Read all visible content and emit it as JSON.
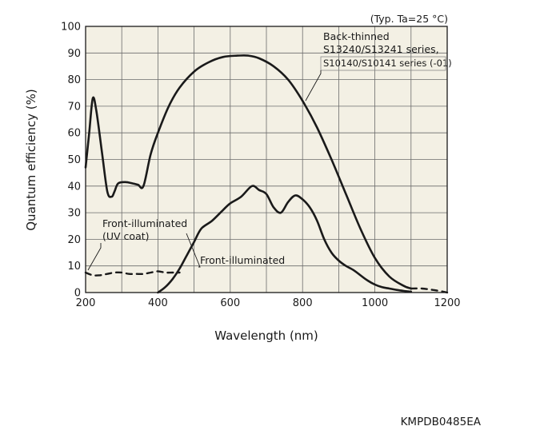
{
  "chart_data": {
    "type": "line",
    "note": "(Typ. Ta=25 °C)",
    "xlabel": "Wavelength (nm)",
    "ylabel": "Quantum efficiency (%)",
    "xlim": [
      200,
      1200
    ],
    "ylim": [
      0,
      100
    ],
    "xticks": [
      200,
      400,
      600,
      800,
      1000,
      1200
    ],
    "yticks": [
      0,
      10,
      20,
      30,
      40,
      50,
      60,
      70,
      80,
      90,
      100
    ],
    "grid": true,
    "plot_background": "#f3f0e4",
    "line_color": "#1a1a1a",
    "series": [
      {
        "name": "Back-thinned S13240/S13241 series, S10140/S10141 series (-01)",
        "x": [
          200,
          210,
          220,
          230,
          245,
          260,
          272,
          280,
          290,
          310,
          330,
          345,
          360,
          380,
          400,
          430,
          460,
          500,
          540,
          580,
          620,
          650,
          680,
          720,
          760,
          800,
          840,
          880,
          920,
          960,
          1000,
          1040,
          1080,
          1100
        ],
        "y": [
          47,
          60,
          73,
          68,
          53,
          38,
          36,
          38,
          41,
          41.5,
          41,
          40.5,
          40,
          52,
          60,
          70,
          77,
          83,
          86.5,
          88.5,
          89,
          89,
          88,
          85,
          80,
          72,
          62,
          50,
          37,
          24,
          13,
          6,
          2.5,
          1.5
        ],
        "style": "solid"
      },
      {
        "name": "Front-illuminated",
        "x": [
          400,
          420,
          440,
          460,
          480,
          500,
          520,
          550,
          580,
          600,
          630,
          660,
          680,
          700,
          720,
          740,
          760,
          780,
          800,
          820,
          840,
          860,
          880,
          900,
          920,
          940,
          960,
          980,
          1000,
          1020,
          1040,
          1060,
          1080,
          1100
        ],
        "y": [
          0,
          2,
          5,
          9,
          14,
          19,
          24,
          27,
          31,
          33.5,
          36,
          40,
          38.5,
          37,
          32,
          30,
          34,
          36.5,
          35,
          32,
          27,
          20,
          15,
          12,
          10,
          8.5,
          6.5,
          4.5,
          3,
          2,
          1.5,
          1,
          0.6,
          0.3
        ],
        "style": "solid"
      },
      {
        "name": "Front-illuminated (UV coat)",
        "x": [
          200,
          220,
          240,
          260,
          280,
          300,
          320,
          340,
          360,
          380,
          400,
          420,
          440,
          460
        ],
        "y": [
          7.5,
          6.5,
          6.5,
          7,
          7.5,
          7.5,
          7,
          7,
          7,
          7.5,
          8,
          7.5,
          7.5,
          7.5
        ],
        "style": "dashed"
      },
      {
        "name": "",
        "x": [
          1100,
          1130,
          1160,
          1190,
          1200
        ],
        "y": [
          1.5,
          1.5,
          1,
          0.3,
          0
        ],
        "style": "dashed"
      }
    ],
    "annotations": [
      {
        "lines": [
          "Back-thinned",
          "S13240/S13241 series,",
          "S10140/S10141 series (-01)"
        ]
      },
      {
        "lines": [
          "Front-illuminated",
          "(UV coat)"
        ]
      },
      {
        "lines": [
          "Front-illuminated"
        ]
      }
    ]
  },
  "figure_code": "KMPDB0485EA"
}
